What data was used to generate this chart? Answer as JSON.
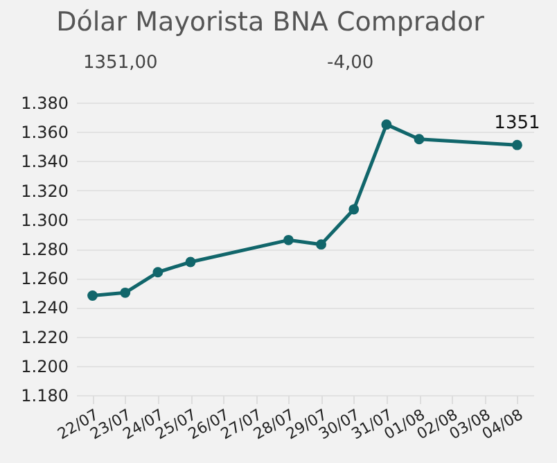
{
  "chart_data": {
    "type": "line",
    "title": "Dólar Mayorista BNA Comprador",
    "annotations": [
      "1351,00",
      "-4,00"
    ],
    "categories": [
      "22/07",
      "23/07",
      "24/07",
      "25/07",
      "26/07",
      "27/07",
      "28/07",
      "29/07",
      "30/07",
      "31/07",
      "01/08",
      "02/08",
      "03/08",
      "04/08"
    ],
    "series": [
      {
        "color": "#11666b",
        "values": [
          1248,
          1250,
          1264,
          1271,
          null,
          null,
          1286,
          1283,
          1307,
          1365,
          1355,
          null,
          null,
          1351
        ],
        "value_labels": [
          null,
          null,
          null,
          null,
          null,
          null,
          null,
          null,
          null,
          null,
          null,
          null,
          null,
          "1351"
        ]
      }
    ],
    "ylim": [
      1180,
      1380
    ],
    "yticks": [
      {
        "value": 1180,
        "label": "1.180"
      },
      {
        "value": 1200,
        "label": "1.200"
      },
      {
        "value": 1220,
        "label": "1.220"
      },
      {
        "value": 1240,
        "label": "1.240"
      },
      {
        "value": 1260,
        "label": "1.260"
      },
      {
        "value": 1280,
        "label": "1.280"
      },
      {
        "value": 1300,
        "label": "1.300"
      },
      {
        "value": 1320,
        "label": "1.320"
      },
      {
        "value": 1340,
        "label": "1.340"
      },
      {
        "value": 1360,
        "label": "1.360"
      },
      {
        "value": 1380,
        "label": "1.380"
      }
    ],
    "grid": "y",
    "marker": "circle",
    "line_style": "solid"
  }
}
